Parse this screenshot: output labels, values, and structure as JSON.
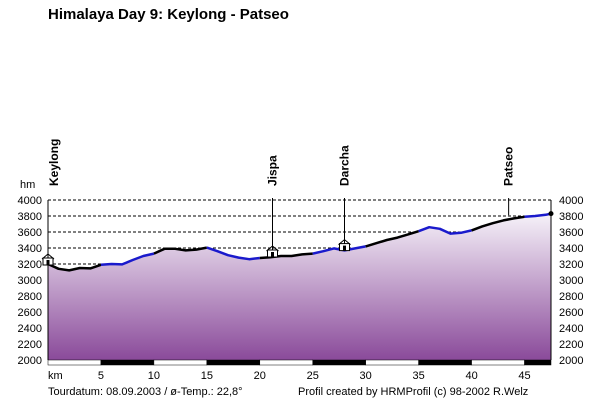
{
  "title": "Himalaya Day 9: Keylong - Patseo",
  "footer": {
    "tour_date": "Tourdatum: 08.09.2003  /  ø-Temp.: 22,8°",
    "credit": "Profil created by HRMProfil (c) 98-2002 R.Welz"
  },
  "colors": {
    "profile_black": "#000000",
    "profile_blue": "#1a1acc",
    "fill_top": "#f6f2f9",
    "fill_bottom": "#8a4a9a"
  },
  "chart_data": {
    "type": "area",
    "xlabel": "km",
    "ylabel": "hm",
    "xlim": [
      0,
      47.5
    ],
    "ylim": [
      2000,
      4000
    ],
    "x_ticks": [
      5,
      10,
      15,
      20,
      25,
      30,
      35,
      40,
      45
    ],
    "y_ticks": [
      2000,
      2200,
      2400,
      2600,
      2800,
      3000,
      3200,
      3400,
      3600,
      3800,
      4000
    ],
    "grid": true,
    "series": [
      {
        "x": [
          0,
          1,
          2,
          3,
          4,
          5,
          6,
          7,
          8,
          9,
          10,
          11,
          12,
          13,
          14,
          15,
          16,
          17,
          18,
          19,
          20,
          21,
          22,
          23,
          24,
          25,
          26,
          27,
          28,
          29,
          30,
          31,
          32,
          33,
          34,
          35,
          36,
          37,
          38,
          39,
          40,
          41,
          42,
          43,
          44,
          45,
          46,
          47,
          47.5
        ],
        "values": [
          3200,
          3140,
          3120,
          3150,
          3145,
          3190,
          3200,
          3195,
          3250,
          3300,
          3330,
          3390,
          3390,
          3370,
          3380,
          3405,
          3360,
          3310,
          3280,
          3260,
          3275,
          3285,
          3300,
          3300,
          3320,
          3330,
          3360,
          3395,
          3370,
          3395,
          3420,
          3460,
          3500,
          3530,
          3570,
          3610,
          3660,
          3640,
          3580,
          3590,
          3620,
          3670,
          3710,
          3745,
          3770,
          3790,
          3800,
          3815,
          3830
        ]
      }
    ],
    "waypoints": [
      {
        "name": "Keylong",
        "km": 0,
        "alt": 3200
      },
      {
        "name": "Jispa",
        "km": 21.2,
        "alt": 3300
      },
      {
        "name": "Darcha",
        "km": 28.0,
        "alt": 3380
      },
      {
        "name": "Patseo",
        "km": 43.5,
        "alt": 3760
      }
    ]
  }
}
